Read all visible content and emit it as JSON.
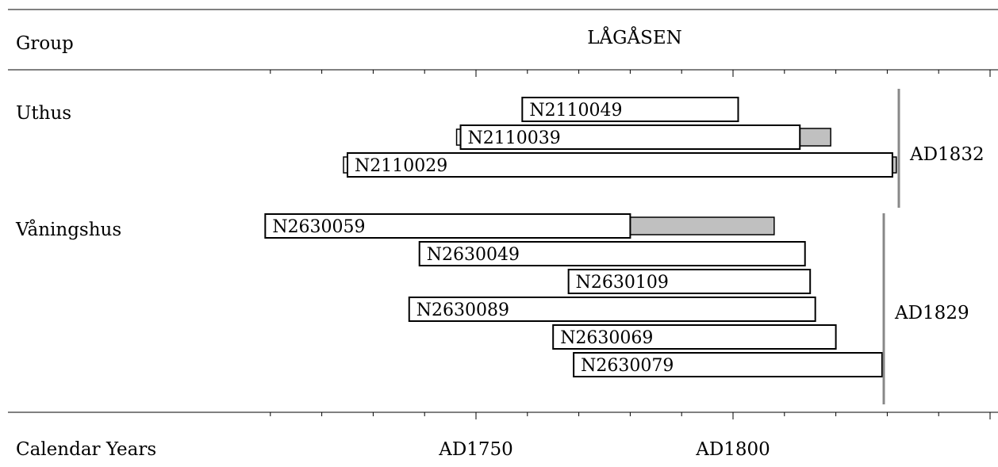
{
  "chart_data": {
    "type": "bar",
    "site_title": "LÅGÅSEN",
    "group_header": "Group",
    "xlabel": "Calendar Years",
    "x_ticks": [
      "AD1750",
      "AD1800"
    ],
    "x_tick_values": [
      1750,
      1800
    ],
    "xlim": [
      1710,
      1760
    ],
    "groups": [
      {
        "name": "Uthus",
        "felling_date": "AD1832",
        "samples": [
          {
            "id": "N2110049",
            "start": 1759,
            "end": 1801
          },
          {
            "id": "N2110039",
            "start": 1747,
            "end": 1813,
            "sapwood_end": 1819,
            "pith_stub": true
          },
          {
            "id": "N2110029",
            "start": 1725,
            "end": 1831,
            "pith_stub": true,
            "bark_stub": true
          }
        ]
      },
      {
        "name": "Våningshus",
        "felling_date": "AD1829",
        "samples": [
          {
            "id": "N2630059",
            "start": 1709,
            "end": 1780,
            "sapwood_end": 1808
          },
          {
            "id": "N2630049",
            "start": 1739,
            "end": 1814
          },
          {
            "id": "N2630109",
            "start": 1768,
            "end": 1815
          },
          {
            "id": "N2630089",
            "start": 1737,
            "end": 1816
          },
          {
            "id": "N2630069",
            "start": 1765,
            "end": 1820
          },
          {
            "id": "N2630079",
            "start": 1769,
            "end": 1829
          }
        ]
      }
    ]
  }
}
